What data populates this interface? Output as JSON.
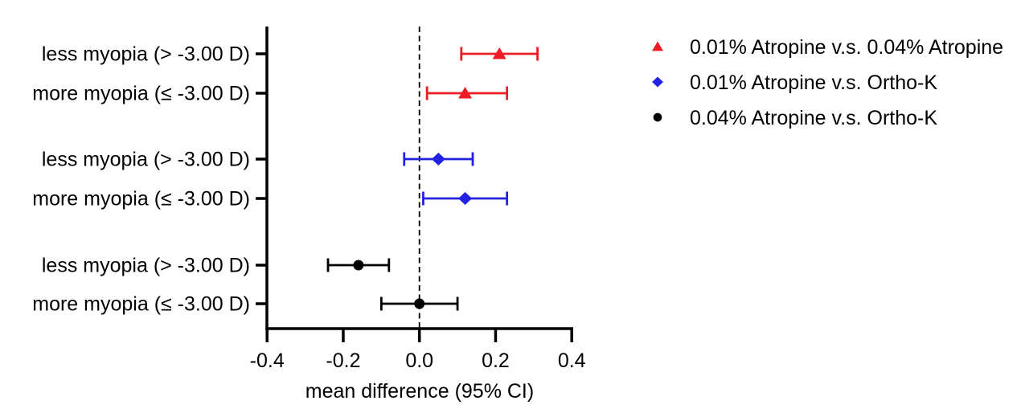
{
  "chart_data": {
    "type": "scatter",
    "variant": "forest-plot",
    "title": "",
    "xlabel": "mean difference (95% CI)",
    "ylabel": "",
    "xlim": [
      -0.4,
      0.4
    ],
    "grid": false,
    "zero_reference_line": 0.0,
    "x_ticks": [
      {
        "value": -0.4,
        "label": "-0.4"
      },
      {
        "value": -0.2,
        "label": "-0.2"
      },
      {
        "value": 0.0,
        "label": "0.0"
      },
      {
        "value": 0.2,
        "label": "0.2"
      },
      {
        "value": 0.4,
        "label": "0.4"
      }
    ],
    "groups": [
      {
        "comparison": "0.01% Atropine v.s. 0.04% Atropine",
        "marker": "triangle",
        "color": "#ed1c24",
        "rows": [
          {
            "label": "less myopia (> -3.00 D)",
            "mean": 0.21,
            "ci_low": 0.11,
            "ci_high": 0.31
          },
          {
            "label": "more myopia (≤ -3.00 D)",
            "mean": 0.12,
            "ci_low": 0.02,
            "ci_high": 0.23
          }
        ]
      },
      {
        "comparison": "0.01% Atropine v.s. Ortho-K",
        "marker": "diamond",
        "color": "#2222e5",
        "rows": [
          {
            "label": "less myopia (> -3.00 D)",
            "mean": 0.05,
            "ci_low": -0.04,
            "ci_high": 0.14
          },
          {
            "label": "more myopia (≤ -3.00 D)",
            "mean": 0.12,
            "ci_low": 0.01,
            "ci_high": 0.23
          }
        ]
      },
      {
        "comparison": "0.04% Atropine v.s. Ortho-K",
        "marker": "circle",
        "color": "#000000",
        "rows": [
          {
            "label": "less myopia (> -3.00 D)",
            "mean": -0.16,
            "ci_low": -0.24,
            "ci_high": -0.08
          },
          {
            "label": "more myopia (≤ -3.00 D)",
            "mean": 0.0,
            "ci_low": -0.1,
            "ci_high": 0.1
          }
        ]
      }
    ],
    "legend": [
      {
        "label": "0.01% Atropine v.s. 0.04% Atropine",
        "marker": "triangle",
        "color": "#ed1c24"
      },
      {
        "label": "0.01% Atropine v.s. Ortho-K",
        "marker": "diamond",
        "color": "#2222e5"
      },
      {
        "label": "0.04% Atropine v.s. Ortho-K",
        "marker": "circle",
        "color": "#000000"
      }
    ],
    "legend_position": "top-right",
    "axis_color": "#000000",
    "background_color": "#ffffff"
  }
}
